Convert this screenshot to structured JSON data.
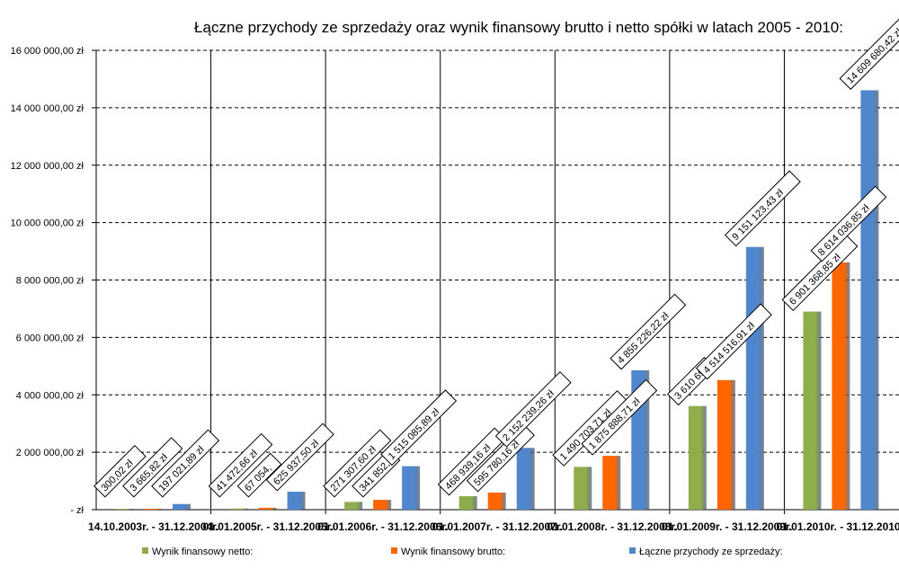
{
  "chart_data": {
    "type": "bar",
    "title": "Łączne przychody  ze sprzedaży oraz wynik finansowy brutto i netto spółki w latach 2005 - 2010:",
    "xlabel": "",
    "ylabel": "",
    "ylim": [
      0,
      16000000
    ],
    "grid": true,
    "legend_position": "bottom",
    "y_ticks": [
      {
        "value": 0,
        "label": "-   zł"
      },
      {
        "value": 2000000,
        "label": "2 000 000,00 zł"
      },
      {
        "value": 4000000,
        "label": "4 000 000,00 zł"
      },
      {
        "value": 6000000,
        "label": "6 000 000,00 zł"
      },
      {
        "value": 8000000,
        "label": "8 000 000,00 zł"
      },
      {
        "value": 10000000,
        "label": "10 000 000,00 zł"
      },
      {
        "value": 12000000,
        "label": "12 000 000,00 zł"
      },
      {
        "value": 14000000,
        "label": "14 000 000,00 zł"
      },
      {
        "value": 16000000,
        "label": "16 000 000,00 zł"
      }
    ],
    "categories": [
      "14.10.2003r. - 31.12.2004r.",
      "01.01.2005r. - 31.12.2005r.",
      "01.01.2006r. - 31.12.2006r.",
      "01.01.2007r. - 31.12.2007r.",
      "01.01.2008r. - 31.12.2008r.",
      "01.01.2009r. - 31.12.2009r.",
      "01.01.2010r. - 31.12.2010r."
    ],
    "series": [
      {
        "name": "Wynik finansowy netto:",
        "color": "#8fad4a",
        "values": [
          300.02,
          41472.66,
          271307.6,
          468939.16,
          1490703.71,
          3610690,
          6901368.85
        ],
        "labels": [
          "300,02 zł",
          "41 472,66 zł",
          "271 307,60 zł",
          "468 939,16 zł",
          "1 490 703,71 zł",
          "3 610 69",
          "6 901 368,85 zł"
        ]
      },
      {
        "name": "Wynik finansowy brutto:",
        "color": "#ff6600",
        "values": [
          3665.82,
          67054,
          341852,
          595780.16,
          1875888.71,
          4514516.91,
          8614036.85
        ],
        "labels": [
          "3 665,82 zł",
          "67 054,",
          "341 852,",
          "595 780,16 zł",
          "1 875 888,71 zł",
          "4 514 516,91 zł",
          "8 614 036,85 zł"
        ]
      },
      {
        "name": "Łączne przychody ze sprzedaży:",
        "color": "#4f86cc",
        "values": [
          197021.89,
          625937.5,
          1515085.89,
          2152239.26,
          4855226.22,
          9151123.43,
          14609680.42
        ],
        "labels": [
          "197 021,89 zł",
          "625 937,50 zł",
          "1 515 085,89 zł",
          "2 152 239,26 zł",
          "4 855 226,22 zł",
          "9 151 123,43 zł",
          "14 609 680,42 zł"
        ]
      }
    ]
  }
}
